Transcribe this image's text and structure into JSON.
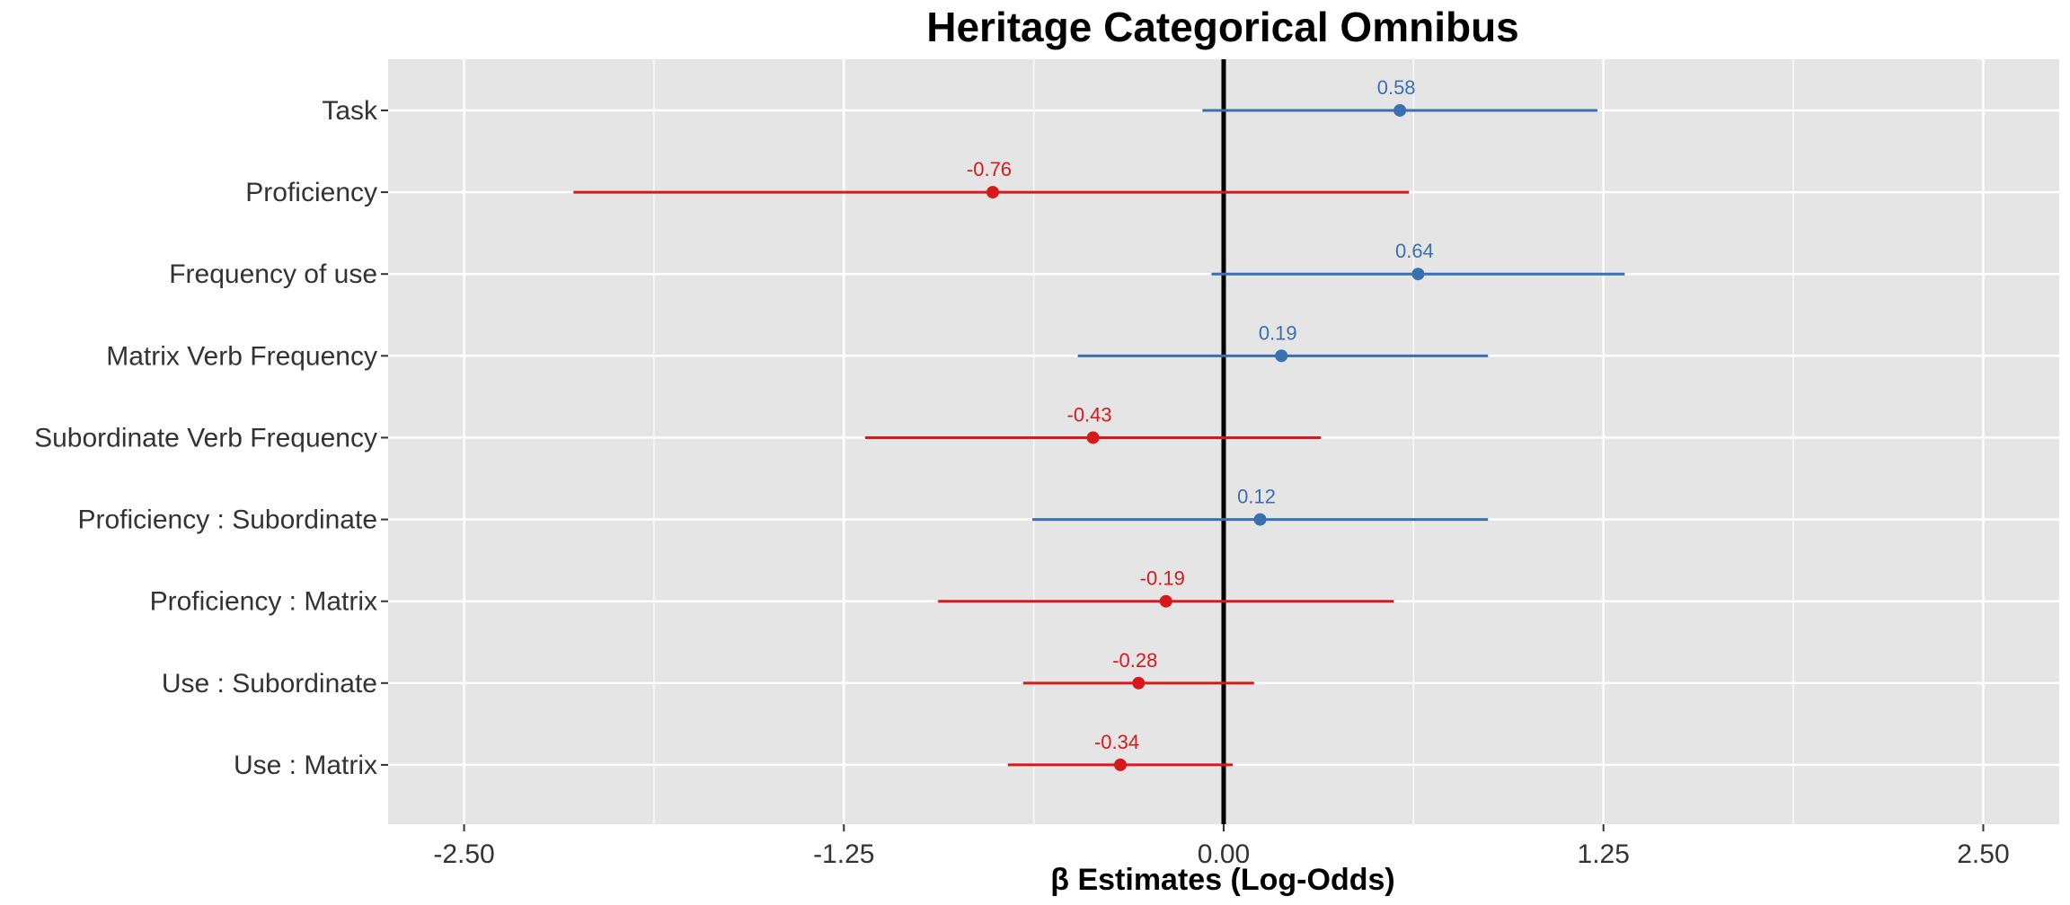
{
  "chart_data": {
    "type": "forest",
    "title": "Heritage Categorical Omnibus",
    "xlabel": "β Estimates (Log-Odds)",
    "ylabel": "",
    "xlim": [
      -2.75,
      2.75
    ],
    "xticks": [
      -2.5,
      -1.25,
      0.0,
      1.25,
      2.5
    ],
    "xtick_labels": [
      "-2.50",
      "-1.25",
      "0.00",
      "1.25",
      "2.50"
    ],
    "reference_line": 0.0,
    "grid": true,
    "colors": {
      "positive": "#3A6FB0",
      "negative": "#D7191C",
      "panel": "#E5E5E5",
      "grid": "#FFFFFF"
    },
    "terms": [
      {
        "label": "Task",
        "estimate": 0.58,
        "lower": -0.07,
        "upper": 1.23,
        "value_label": "0.58"
      },
      {
        "label": "Proficiency",
        "estimate": -0.76,
        "lower": -2.14,
        "upper": 0.61,
        "value_label": "-0.76"
      },
      {
        "label": "Frequency of use",
        "estimate": 0.64,
        "lower": -0.04,
        "upper": 1.32,
        "value_label": "0.64"
      },
      {
        "label": "Matrix Verb Frequency",
        "estimate": 0.19,
        "lower": -0.48,
        "upper": 0.87,
        "value_label": "0.19"
      },
      {
        "label": "Subordinate Verb Frequency",
        "estimate": -0.43,
        "lower": -1.18,
        "upper": 0.32,
        "value_label": "-0.43"
      },
      {
        "label": "Proficiency : Subordinate",
        "estimate": 0.12,
        "lower": -0.63,
        "upper": 0.87,
        "value_label": "0.12"
      },
      {
        "label": "Proficiency : Matrix",
        "estimate": -0.19,
        "lower": -0.94,
        "upper": 0.56,
        "value_label": "-0.19"
      },
      {
        "label": "Use : Subordinate",
        "estimate": -0.28,
        "lower": -0.66,
        "upper": 0.1,
        "value_label": "-0.28"
      },
      {
        "label": "Use : Matrix",
        "estimate": -0.34,
        "lower": -0.71,
        "upper": 0.03,
        "value_label": "-0.34"
      }
    ]
  }
}
